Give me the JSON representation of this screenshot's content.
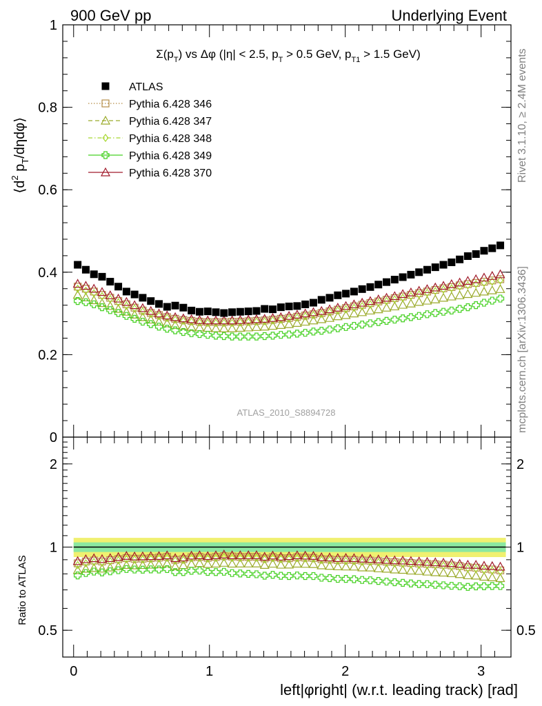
{
  "header": {
    "left": "900 GeV pp",
    "right": "Underlying Event"
  },
  "side_labels": {
    "rivet": "Rivet 3.1.10, ≥ 2.4M events",
    "mcplots": "mcplots.cern.ch [arXiv:1306.3436]"
  },
  "chart_data": [
    {
      "type": "scatter",
      "title": "Σ(p_T) vs Δφ (|η| < 2.5, p_T > 0.5 GeV, p_T1 > 1.5 GeV)",
      "title_parts": [
        "Σ(p",
        "T",
        ") vs Δφ (|η| < 2.5, p",
        "T",
        " > 0.5 GeV, p",
        "T1",
        " > 1.5 GeV)"
      ],
      "ylabel": "⟨d² p_T/dηdφ⟩",
      "ylabel_parts": [
        "⟨d",
        "2",
        " p",
        "T",
        "/dηdφ⟩"
      ],
      "xlim": [
        -0.08,
        3.22
      ],
      "ylim": [
        0,
        1
      ],
      "yticks": [
        "0",
        "0.2",
        "0.4",
        "0.6",
        "0.8",
        "1"
      ],
      "watermark": "ATLAS_2010_S8894728",
      "legend_position": "top-left",
      "series": [
        {
          "name": "ATLAS",
          "marker": "filled-square",
          "color": "#000000",
          "x": [
            0.0299,
            0.0898,
            0.1496,
            0.2094,
            0.2693,
            0.3291,
            0.389,
            0.4488,
            0.5086,
            0.5685,
            0.6283,
            0.6882,
            0.748,
            0.8078,
            0.8677,
            0.9275,
            0.9874,
            1.0472,
            1.107,
            1.1669,
            1.2267,
            1.2866,
            1.3464,
            1.4062,
            1.4661,
            1.5259,
            1.5858,
            1.6456,
            1.7054,
            1.7653,
            1.8251,
            1.885,
            1.9448,
            2.0046,
            2.0645,
            2.1243,
            2.1842,
            2.244,
            2.3038,
            2.3637,
            2.4235,
            2.4834,
            2.5432,
            2.603,
            2.6629,
            2.7227,
            2.7826,
            2.8424,
            2.9022,
            2.9621,
            3.0219,
            3.0818,
            3.1416
          ],
          "y": [
            0.418,
            0.406,
            0.395,
            0.389,
            0.377,
            0.365,
            0.353,
            0.346,
            0.338,
            0.33,
            0.323,
            0.316,
            0.319,
            0.314,
            0.307,
            0.304,
            0.305,
            0.303,
            0.301,
            0.303,
            0.304,
            0.305,
            0.306,
            0.311,
            0.31,
            0.315,
            0.317,
            0.318,
            0.322,
            0.326,
            0.333,
            0.338,
            0.344,
            0.348,
            0.353,
            0.359,
            0.364,
            0.37,
            0.376,
            0.382,
            0.388,
            0.394,
            0.4,
            0.406,
            0.412,
            0.418,
            0.424,
            0.431,
            0.439,
            0.444,
            0.452,
            0.458,
            0.465
          ]
        },
        {
          "name": "Pythia 6.428 346",
          "marker": "open-square",
          "color": "#b48c46",
          "line": "dotted",
          "x": [
            0.0299,
            0.0898,
            0.1496,
            0.2094,
            0.2693,
            0.3291,
            0.389,
            0.4488,
            0.5086,
            0.5685,
            0.6283,
            0.6882,
            0.748,
            0.8078,
            0.8677,
            0.9275,
            0.9874,
            1.0472,
            1.107,
            1.1669,
            1.2267,
            1.2866,
            1.3464,
            1.4062,
            1.4661,
            1.5259,
            1.5858,
            1.6456,
            1.7054,
            1.7653,
            1.8251,
            1.885,
            1.9448,
            2.0046,
            2.0645,
            2.1243,
            2.1842,
            2.244,
            2.3038,
            2.3637,
            2.4235,
            2.4834,
            2.5432,
            2.603,
            2.6629,
            2.7227,
            2.7826,
            2.8424,
            2.9022,
            2.9621,
            3.0219,
            3.0818,
            3.1416
          ],
          "y": [
            0.365,
            0.36,
            0.353,
            0.345,
            0.338,
            0.33,
            0.322,
            0.314,
            0.307,
            0.301,
            0.296,
            0.291,
            0.287,
            0.284,
            0.282,
            0.28,
            0.279,
            0.279,
            0.279,
            0.28,
            0.28,
            0.281,
            0.282,
            0.283,
            0.285,
            0.287,
            0.289,
            0.292,
            0.295,
            0.298,
            0.301,
            0.305,
            0.309,
            0.313,
            0.317,
            0.321,
            0.325,
            0.329,
            0.333,
            0.337,
            0.341,
            0.345,
            0.349,
            0.353,
            0.357,
            0.361,
            0.364,
            0.368,
            0.371,
            0.374,
            0.377,
            0.38,
            0.383
          ]
        },
        {
          "name": "Pythia 6.428 347",
          "marker": "open-triangle",
          "color": "#9aaa2a",
          "line": "dashed",
          "x": [
            0.0299,
            0.0898,
            0.1496,
            0.2094,
            0.2693,
            0.3291,
            0.389,
            0.4488,
            0.5086,
            0.5685,
            0.6283,
            0.6882,
            0.748,
            0.8078,
            0.8677,
            0.9275,
            0.9874,
            1.0472,
            1.107,
            1.1669,
            1.2267,
            1.2866,
            1.3464,
            1.4062,
            1.4661,
            1.5259,
            1.5858,
            1.6456,
            1.7054,
            1.7653,
            1.8251,
            1.885,
            1.9448,
            2.0046,
            2.0645,
            2.1243,
            2.1842,
            2.244,
            2.3038,
            2.3637,
            2.4235,
            2.4834,
            2.5432,
            2.603,
            2.6629,
            2.7227,
            2.7826,
            2.8424,
            2.9022,
            2.9621,
            3.0219,
            3.0818,
            3.1416
          ],
          "y": [
            0.345,
            0.339,
            0.332,
            0.325,
            0.318,
            0.311,
            0.304,
            0.297,
            0.291,
            0.285,
            0.28,
            0.276,
            0.272,
            0.27,
            0.267,
            0.266,
            0.265,
            0.264,
            0.264,
            0.264,
            0.265,
            0.266,
            0.267,
            0.268,
            0.27,
            0.272,
            0.274,
            0.277,
            0.28,
            0.283,
            0.286,
            0.289,
            0.293,
            0.296,
            0.3,
            0.303,
            0.307,
            0.31,
            0.314,
            0.317,
            0.321,
            0.324,
            0.328,
            0.331,
            0.334,
            0.338,
            0.341,
            0.344,
            0.347,
            0.35,
            0.353,
            0.356,
            0.359
          ]
        },
        {
          "name": "Pythia 6.428 348",
          "marker": "open-diamond",
          "color": "#a8d830",
          "line": "dashdot",
          "x": [
            0.0299,
            0.0898,
            0.1496,
            0.2094,
            0.2693,
            0.3291,
            0.389,
            0.4488,
            0.5086,
            0.5685,
            0.6283,
            0.6882,
            0.748,
            0.8078,
            0.8677,
            0.9275,
            0.9874,
            1.0472,
            1.107,
            1.1669,
            1.2267,
            1.2866,
            1.3464,
            1.4062,
            1.4661,
            1.5259,
            1.5858,
            1.6456,
            1.7054,
            1.7653,
            1.8251,
            1.885,
            1.9448,
            2.0046,
            2.0645,
            2.1243,
            2.1842,
            2.244,
            2.3038,
            2.3637,
            2.4235,
            2.4834,
            2.5432,
            2.603,
            2.6629,
            2.7227,
            2.7826,
            2.8424,
            2.9022,
            2.9621,
            3.0219,
            3.0818,
            3.1416
          ],
          "y": [
            0.36,
            0.355,
            0.349,
            0.342,
            0.335,
            0.327,
            0.319,
            0.312,
            0.305,
            0.299,
            0.294,
            0.289,
            0.285,
            0.282,
            0.28,
            0.278,
            0.277,
            0.277,
            0.277,
            0.277,
            0.278,
            0.279,
            0.28,
            0.281,
            0.283,
            0.285,
            0.287,
            0.29,
            0.293,
            0.296,
            0.299,
            0.303,
            0.307,
            0.31,
            0.314,
            0.318,
            0.322,
            0.326,
            0.33,
            0.334,
            0.338,
            0.342,
            0.346,
            0.35,
            0.354,
            0.358,
            0.361,
            0.365,
            0.368,
            0.371,
            0.374,
            0.377,
            0.38
          ]
        },
        {
          "name": "Pythia 6.428 349",
          "marker": "open-cross",
          "color": "#44d020",
          "line": "solid",
          "x": [
            0.0299,
            0.0898,
            0.1496,
            0.2094,
            0.2693,
            0.3291,
            0.389,
            0.4488,
            0.5086,
            0.5685,
            0.6283,
            0.6882,
            0.748,
            0.8078,
            0.8677,
            0.9275,
            0.9874,
            1.0472,
            1.107,
            1.1669,
            1.2267,
            1.2866,
            1.3464,
            1.4062,
            1.4661,
            1.5259,
            1.5858,
            1.6456,
            1.7054,
            1.7653,
            1.8251,
            1.885,
            1.9448,
            2.0046,
            2.0645,
            2.1243,
            2.1842,
            2.244,
            2.3038,
            2.3637,
            2.4235,
            2.4834,
            2.5432,
            2.603,
            2.6629,
            2.7227,
            2.7826,
            2.8424,
            2.9022,
            2.9621,
            3.0219,
            3.0818,
            3.1416
          ],
          "y": [
            0.33,
            0.327,
            0.322,
            0.315,
            0.308,
            0.301,
            0.294,
            0.287,
            0.28,
            0.274,
            0.268,
            0.263,
            0.259,
            0.255,
            0.252,
            0.25,
            0.248,
            0.246,
            0.245,
            0.244,
            0.244,
            0.244,
            0.244,
            0.245,
            0.246,
            0.248,
            0.249,
            0.251,
            0.253,
            0.256,
            0.258,
            0.261,
            0.264,
            0.267,
            0.27,
            0.273,
            0.276,
            0.279,
            0.282,
            0.285,
            0.288,
            0.291,
            0.294,
            0.298,
            0.301,
            0.304,
            0.307,
            0.311,
            0.315,
            0.32,
            0.326,
            0.331,
            0.336
          ]
        },
        {
          "name": "Pythia 6.428 370",
          "marker": "open-triangle",
          "color": "#a01a2a",
          "line": "solid",
          "x": [
            0.0299,
            0.0898,
            0.1496,
            0.2094,
            0.2693,
            0.3291,
            0.389,
            0.4488,
            0.5086,
            0.5685,
            0.6283,
            0.6882,
            0.748,
            0.8078,
            0.8677,
            0.9275,
            0.9874,
            1.0472,
            1.107,
            1.1669,
            1.2267,
            1.2866,
            1.3464,
            1.4062,
            1.4661,
            1.5259,
            1.5858,
            1.6456,
            1.7054,
            1.7653,
            1.8251,
            1.885,
            1.9448,
            2.0046,
            2.0645,
            2.1243,
            2.1842,
            2.244,
            2.3038,
            2.3637,
            2.4235,
            2.4834,
            2.5432,
            2.603,
            2.6629,
            2.7227,
            2.7826,
            2.8424,
            2.9022,
            2.9621,
            3.0219,
            3.0818,
            3.1416
          ],
          "y": [
            0.372,
            0.367,
            0.36,
            0.352,
            0.344,
            0.336,
            0.328,
            0.32,
            0.313,
            0.306,
            0.3,
            0.295,
            0.291,
            0.288,
            0.286,
            0.284,
            0.283,
            0.283,
            0.283,
            0.283,
            0.284,
            0.285,
            0.286,
            0.287,
            0.289,
            0.291,
            0.294,
            0.297,
            0.3,
            0.303,
            0.306,
            0.31,
            0.314,
            0.318,
            0.322,
            0.326,
            0.33,
            0.334,
            0.338,
            0.342,
            0.347,
            0.351,
            0.355,
            0.359,
            0.363,
            0.367,
            0.371,
            0.375,
            0.379,
            0.383,
            0.387,
            0.391,
            0.395
          ]
        }
      ]
    },
    {
      "type": "scatter",
      "ylabel": "Ratio to ATLAS",
      "xlabel": "left|φright| (w.r.t. leading track) [rad]",
      "xlim": [
        -0.08,
        3.22
      ],
      "ylim": [
        0.4,
        2.5
      ],
      "yscale": "log",
      "xticks": [
        "0",
        "1",
        "2",
        "3"
      ],
      "yticks": [
        "0.5",
        "1",
        "2"
      ],
      "reference_line": 1,
      "data_uncertainty_bands": {
        "stat": 0.04,
        "total": 0.08,
        "stat_color": "#8be8a0",
        "total_color": "#f0f070"
      },
      "note": "ratios of each Pythia series to ATLAS at the same x"
    }
  ]
}
